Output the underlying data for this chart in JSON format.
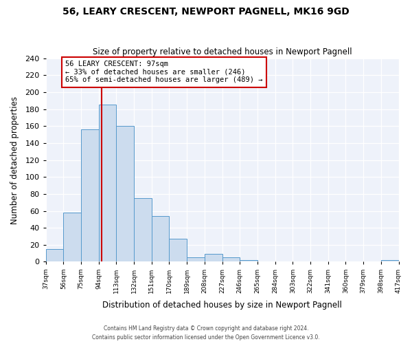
{
  "title": "56, LEARY CRESCENT, NEWPORT PAGNELL, MK16 9GD",
  "subtitle": "Size of property relative to detached houses in Newport Pagnell",
  "xlabel": "Distribution of detached houses by size in Newport Pagnell",
  "ylabel": "Number of detached properties",
  "bar_values": [
    15,
    58,
    156,
    185,
    160,
    75,
    54,
    27,
    5,
    9,
    5,
    2,
    0,
    0,
    0,
    0,
    0,
    0,
    0,
    2
  ],
  "bin_edges": [
    37,
    56,
    75,
    94,
    113,
    132,
    151,
    170,
    189,
    208,
    227,
    246,
    265,
    284,
    303,
    322,
    341,
    360,
    379,
    398,
    417
  ],
  "tick_labels": [
    "37sqm",
    "56sqm",
    "75sqm",
    "94sqm",
    "113sqm",
    "132sqm",
    "151sqm",
    "170sqm",
    "189sqm",
    "208sqm",
    "227sqm",
    "246sqm",
    "265sqm",
    "284sqm",
    "303sqm",
    "322sqm",
    "341sqm",
    "360sqm",
    "379sqm",
    "398sqm",
    "417sqm"
  ],
  "bar_color": "#ccdcee",
  "bar_edge_color": "#5599cc",
  "vline_x": 97,
  "vline_color": "#cc0000",
  "annotation_box_color": "#cc0000",
  "annotation_text_line1": "56 LEARY CRESCENT: 97sqm",
  "annotation_text_line2": "← 33% of detached houses are smaller (246)",
  "annotation_text_line3": "65% of semi-detached houses are larger (489) →",
  "ylim": [
    0,
    240
  ],
  "yticks": [
    0,
    20,
    40,
    60,
    80,
    100,
    120,
    140,
    160,
    180,
    200,
    220,
    240
  ],
  "background_color": "#eef2fa",
  "plot_bg_color": "#eef2fa",
  "footer_line1": "Contains HM Land Registry data © Crown copyright and database right 2024.",
  "footer_line2": "Contains public sector information licensed under the Open Government Licence v3.0."
}
